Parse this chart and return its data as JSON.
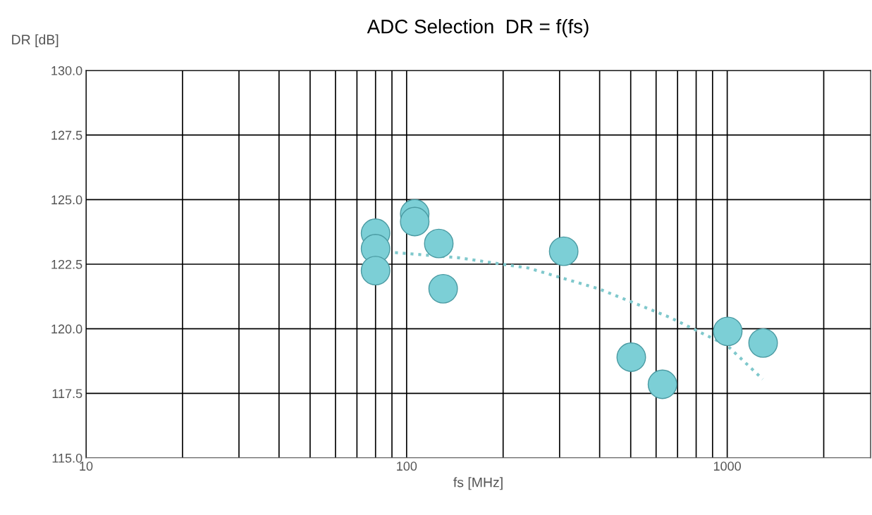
{
  "chart_data": {
    "type": "scatter",
    "title": "ADC Selection  DR = f(fs)",
    "xlabel": "fs [MHz]",
    "ylabel": "DR [dB]",
    "log": "x",
    "grid": true,
    "xlim": [
      10,
      2800
    ],
    "xticks": [
      10,
      {
        "value": 20,
        "label": null
      },
      {
        "value": 30,
        "label": null
      },
      {
        "value": 40,
        "label": null
      },
      {
        "value": 50,
        "label": null
      },
      {
        "value": 60,
        "label": null
      },
      {
        "value": 70,
        "label": null
      },
      {
        "value": 80,
        "label": null
      },
      {
        "value": 90,
        "label": null
      },
      100,
      {
        "value": 200,
        "label": null
      },
      {
        "value": 300,
        "label": null
      },
      {
        "value": 400,
        "label": null
      },
      {
        "value": 500,
        "label": null
      },
      {
        "value": 600,
        "label": null
      },
      {
        "value": 700,
        "label": null
      },
      {
        "value": 800,
        "label": null
      },
      {
        "value": 900,
        "label": null
      },
      1000,
      {
        "value": 2000,
        "label": null
      }
    ],
    "ylim": [
      115,
      130
    ],
    "yticks": [
      {
        "value": 115,
        "label": "115.0"
      },
      {
        "value": 117.5,
        "label": "117.5"
      },
      {
        "value": 120,
        "label": "120.0"
      },
      {
        "value": 122.5,
        "label": "122.5"
      },
      {
        "value": 125,
        "label": "125.0"
      },
      {
        "value": 127.5,
        "label": "127.5"
      },
      {
        "value": 130,
        "label": "130.0"
      }
    ],
    "series": [
      {
        "marker": "circle",
        "color": "#7ccfd6",
        "x": [
          80,
          80,
          80,
          106,
          106,
          126,
          130,
          309,
          502,
          628,
          1004,
          1294
        ],
        "values": [
          123.7,
          123.1,
          122.25,
          124.45,
          124.15,
          123.3,
          121.55,
          123.0,
          118.9,
          117.85,
          119.9,
          119.45
        ]
      },
      {
        "type": "line",
        "marker": "none",
        "color": "#7fc8cc",
        "line_style": "dotted",
        "x": [
          92,
          145,
          240,
          397,
          660,
          1000,
          1290
        ],
        "values": [
          122.95,
          122.75,
          122.35,
          121.55,
          120.45,
          119.35,
          118.05
        ]
      }
    ]
  }
}
